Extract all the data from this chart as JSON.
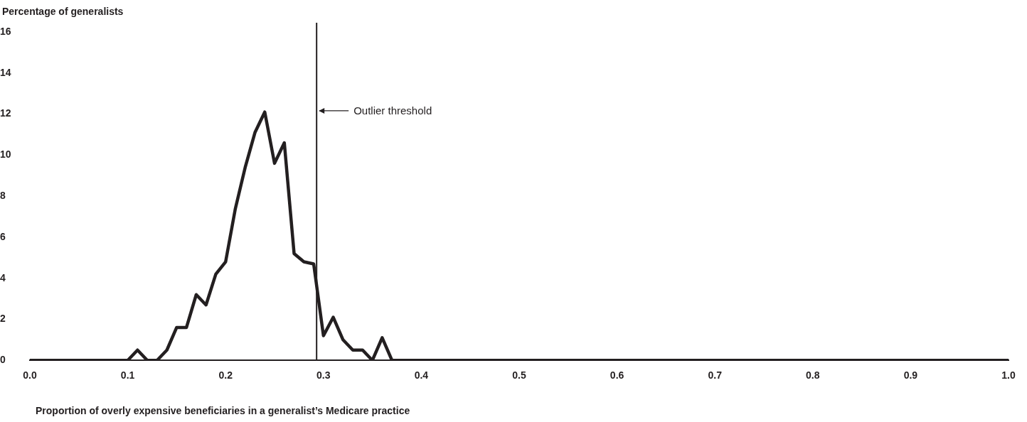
{
  "chart_data": {
    "type": "line",
    "xlabel": "Proportion of overly expensive beneficiaries in a generalist’s Medicare practice",
    "ylabel": "Percentage of generalists",
    "x": [
      0,
      0.1,
      0.11,
      0.12,
      0.13,
      0.14,
      0.15,
      0.16,
      0.17,
      0.18,
      0.19,
      0.2,
      0.21,
      0.22,
      0.23,
      0.24,
      0.25,
      0.26,
      0.27,
      0.28,
      0.29,
      0.3,
      0.31,
      0.32,
      0.33,
      0.34,
      0.35,
      0.36,
      0.37,
      1.0
    ],
    "values": [
      0,
      0,
      0.5,
      0,
      0,
      0.5,
      1.6,
      1.6,
      3.2,
      2.7,
      4.2,
      4.8,
      7.4,
      9.4,
      11.1,
      12.1,
      9.6,
      10.6,
      5.2,
      4.8,
      4.7,
      1.2,
      2.1,
      1.0,
      0.5,
      0.5,
      0,
      1.1,
      0,
      0
    ],
    "color": "#231f20",
    "marker": "none",
    "line_style": "solid",
    "grid": false,
    "legend": false,
    "xlim": [
      0,
      1
    ],
    "xticks": [
      {
        "value": 0,
        "label": "0.0"
      },
      0.1,
      0.2,
      0.3,
      0.4,
      0.5,
      0.6,
      0.7,
      0.8,
      0.9,
      {
        "value": 1,
        "label": "1.0"
      }
    ],
    "ylim": [
      0,
      16
    ],
    "yticks": [
      0,
      2,
      4,
      6,
      8,
      10,
      12,
      14,
      16
    ],
    "ref_lines": [
      {
        "axis": "x",
        "value": 0.293,
        "label": "Outlier threshold",
        "color": "#231f20"
      }
    ]
  }
}
